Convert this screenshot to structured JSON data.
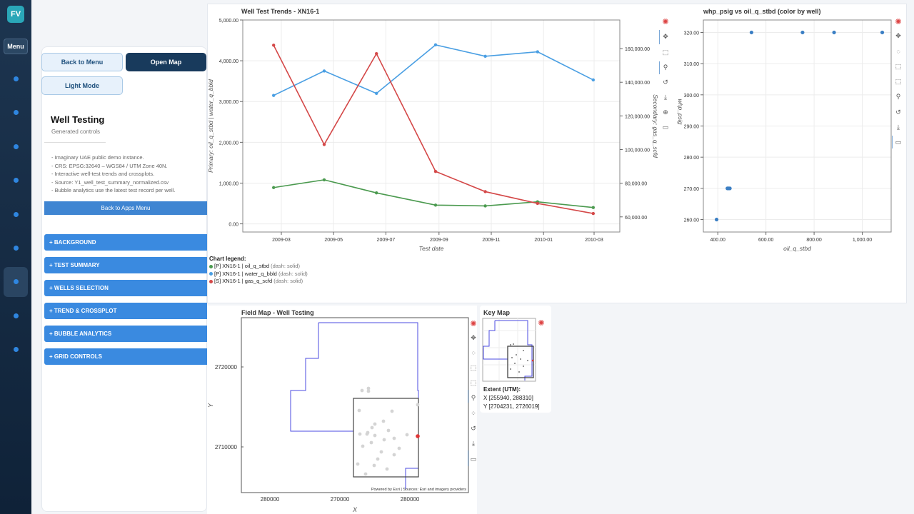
{
  "app": {
    "logo": "FV",
    "menu_label": "Menu"
  },
  "rail": {
    "icons": [
      "nav-dot-icon",
      "nav-dot-icon",
      "nav-dot-icon",
      "nav-dot-icon",
      "nav-dot-icon",
      "nav-dot-icon",
      "nav-dot-icon",
      "nav-dot-icon",
      "nav-dot-icon"
    ]
  },
  "side": {
    "back_menu": "Back to Menu",
    "open_map": "Open Map",
    "light_mode": "Light Mode",
    "title": "Well Testing",
    "subtitle": "Generated controls",
    "notes": [
      "- Imaginary UAE public demo instance.",
      "- CRS: EPSG:32640 – WGS84 / UTM Zone 40N.",
      "- Interactive well-test trends and crossplots.",
      "- Source: Y1_well_test_summary_normalized.csv",
      "- Bubble analytics use the latest test record per well."
    ],
    "back_apps": "Back to Apps Menu",
    "sections": [
      "+ BACKGROUND",
      "+ TEST SUMMARY",
      "+ WELLS SELECTION",
      "+ TREND & CROSSPLOT",
      "+ BUBBLE ANALYTICS",
      "+ GRID CONTROLS"
    ]
  },
  "legend": {
    "title": "Chart legend:",
    "items": [
      {
        "label": "[P] XN16-1 | oil_q_stbd",
        "dash": "(dash: solid)",
        "color": "#4b9a4f"
      },
      {
        "label": "[P] XN16-1 | water_q_bbld",
        "dash": "(dash: solid)",
        "color": "#4a9fe3"
      },
      {
        "label": "[S] XN16-1 | gas_q_scfd",
        "dash": "(dash: solid)",
        "color": "#d44848"
      }
    ]
  },
  "chart_data": [
    {
      "type": "line",
      "title": "Well Test Trends - XN16-1",
      "xlabel": "Test date",
      "ylabel": "Primary: oil_q_stbd | water_q_bbld",
      "y2label": "Secondary: gas_q_scfd",
      "x": [
        "2009-02-20",
        "2009-04-20",
        "2009-06-20",
        "2009-08-28",
        "2009-10-25",
        "2009-12-25",
        "2010-02-28"
      ],
      "xticks": [
        "2009-03",
        "2009-05",
        "2009-07",
        "2009-09",
        "2009-11",
        "2010-01",
        "2010-03"
      ],
      "ylim": [
        -200,
        5000
      ],
      "y2lim": [
        51000,
        177000
      ],
      "yticks": [
        "0.00",
        "1,000.00",
        "2,000.00",
        "3,000.00",
        "4,000.00",
        "5,000.00"
      ],
      "y2ticks": [
        "60,000.00",
        "80,000.00",
        "100,000.00",
        "120,000.00",
        "140,000.00",
        "160,000.00"
      ],
      "series": [
        {
          "name": "oil_q_stbd",
          "axis": "primary",
          "color": "#4b9a4f",
          "values": [
            890,
            1080,
            760,
            460,
            440,
            540,
            400
          ]
        },
        {
          "name": "water_q_bbld",
          "axis": "primary",
          "color": "#4a9fe3",
          "values": [
            3150,
            3750,
            3200,
            4390,
            4110,
            4220,
            3530
          ]
        },
        {
          "name": "gas_q_scfd",
          "axis": "secondary",
          "color": "#d44848",
          "values": [
            162000,
            103000,
            157000,
            87000,
            75000,
            68000,
            62000
          ]
        }
      ],
      "grid": true
    },
    {
      "type": "scatter",
      "title": "whp_psig vs oil_q_stbd (color by well)",
      "xlabel": "oil_q_stbd",
      "ylabel": "whp_psig",
      "xlim": [
        340,
        1120
      ],
      "ylim": [
        256,
        324
      ],
      "xticks": [
        "400.00",
        "600.00",
        "800.00",
        "1,000.00"
      ],
      "yticks": [
        "260.00",
        "270.00",
        "280.00",
        "290.00",
        "300.00",
        "310.00",
        "320.00"
      ],
      "x": [
        395,
        440,
        445,
        450,
        540,
        752,
        883,
        1083
      ],
      "y": [
        260,
        270,
        270,
        270,
        320,
        320,
        320,
        320
      ],
      "color": "#3b7fc4",
      "grid": true
    }
  ],
  "map": {
    "title": "Field Map - Well Testing",
    "xlabel": "X",
    "ylabel": "Y",
    "xticks": [
      "280000",
      "270000",
      "280000"
    ],
    "yticks": [
      "2720000",
      "2710000"
    ],
    "attribution": "Powered by Esri | Sources: Esri and imagery providers"
  },
  "keymap": {
    "title": "Key Map",
    "extent_label": "Extent (UTM):",
    "x_extent": "X [255940, 288310]",
    "y_extent": "Y [2704231, 2726019]"
  }
}
